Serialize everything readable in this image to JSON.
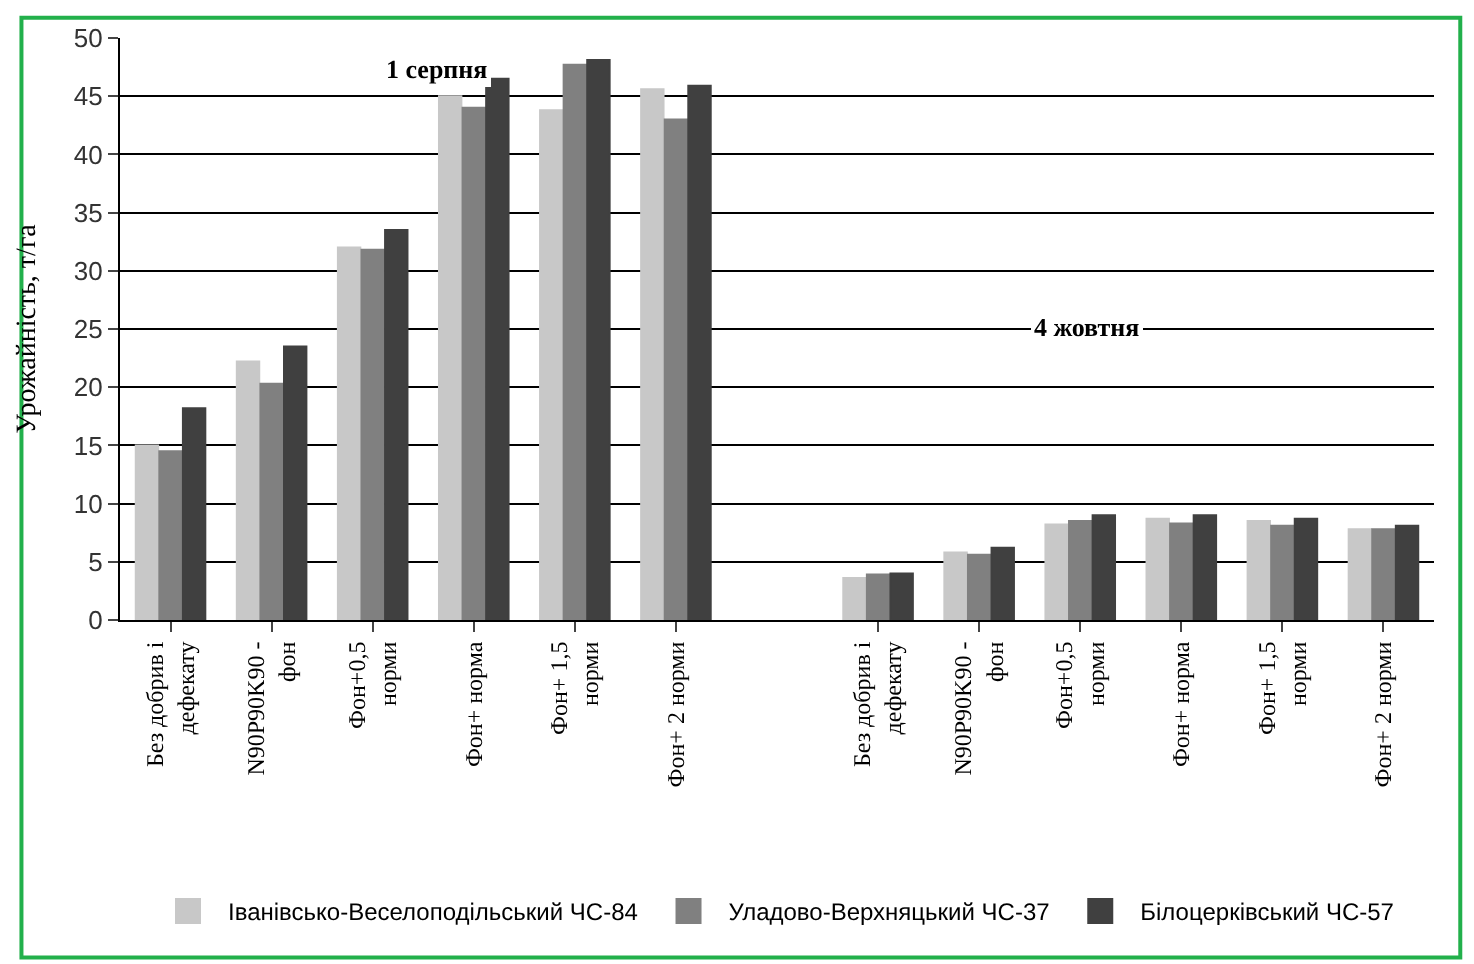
{
  "chart_data": {
    "type": "bar",
    "categories": [
      "Без добрив і дефекату",
      "N90P90K90 - фон",
      "Фон+0,5 норми",
      "Фон+ норма",
      "Фон+ 1,5 норми",
      "Фон+ 2 норми",
      null,
      "Без добрив і дефекату",
      "N90P90K90 - фон",
      "Фон+0,5 норми",
      "Фон+ норма",
      "Фон+ 1,5 норми",
      "Фон+ 2 норми"
    ],
    "series": [
      {
        "name": "Іванівсько-Веселоподільський ЧС-84",
        "color": "#c8c8c8",
        "values": [
          15,
          22.2,
          32,
          45,
          43.8,
          45.6,
          null,
          3.6,
          5.8,
          8.2,
          8.7,
          8.5,
          7.8
        ]
      },
      {
        "name": "Уладово-Верхняцький ЧС-37",
        "color": "#808080",
        "values": [
          14.5,
          20.3,
          31.8,
          44,
          47.7,
          43,
          null,
          3.9,
          5.6,
          8.5,
          8.3,
          8.1,
          7.8
        ]
      },
      {
        "name": "Білоцерківський ЧС-57",
        "color": "#404040",
        "values": [
          18.2,
          23.5,
          33.5,
          46.5,
          48.1,
          45.9,
          null,
          4.0,
          6.2,
          9.0,
          9.0,
          8.7,
          8.1
        ]
      }
    ],
    "ylabel": "Урожайність, т/га",
    "ylim": [
      0,
      50
    ],
    "yticks": [
      0,
      5,
      10,
      15,
      20,
      25,
      30,
      35,
      40,
      45,
      50
    ],
    "annotations": [
      "1 серпня",
      "4 жовтня"
    ],
    "grid": "y",
    "legend": "bottom"
  }
}
